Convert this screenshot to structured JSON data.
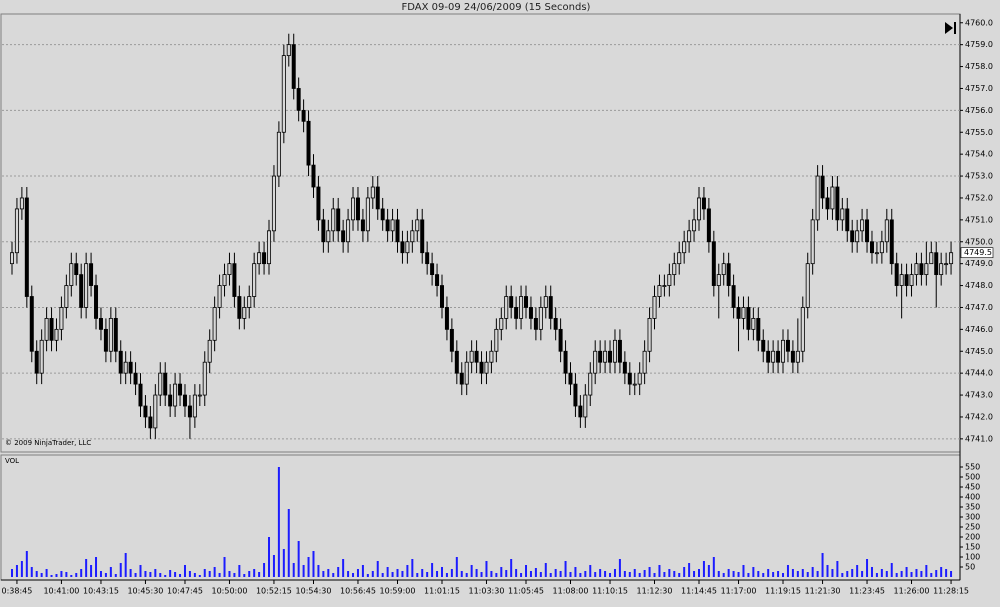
{
  "chart_data": {
    "type": "candlestick",
    "title": "FDAX 09-09  24/06/2009 (15 Seconds)",
    "copyright": "© 2009 NinjaTrader, LLC",
    "volume_label": "VOL",
    "categories": [
      null,
      "0:38:45",
      null,
      null,
      null,
      null,
      null,
      null,
      null,
      null,
      "10:41:00",
      null,
      null,
      null,
      null,
      null,
      null,
      null,
      "10:43:15",
      null,
      null,
      null,
      null,
      null,
      null,
      null,
      null,
      "10:45:30",
      null,
      null,
      null,
      null,
      null,
      null,
      null,
      "10:47:45",
      null,
      null,
      null,
      null,
      null,
      null,
      null,
      null,
      "10:50:00",
      null,
      null,
      null,
      null,
      null,
      null,
      null,
      null,
      "10:52:15",
      null,
      null,
      null,
      null,
      null,
      null,
      null,
      "10:54:30",
      null,
      null,
      null,
      null,
      null,
      null,
      null,
      null,
      "10:56:45",
      null,
      null,
      null,
      null,
      null,
      null,
      null,
      "10:59:00",
      null,
      null,
      null,
      null,
      null,
      null,
      null,
      null,
      "11:01:15",
      null,
      null,
      null,
      null,
      null,
      null,
      null,
      null,
      "11:03:30",
      null,
      null,
      null,
      null,
      null,
      null,
      null,
      "11:05:45",
      null,
      null,
      null,
      null,
      null,
      null,
      null,
      null,
      "11:08:00",
      null,
      null,
      null,
      null,
      null,
      null,
      null,
      "11:10:15",
      null,
      null,
      null,
      null,
      null,
      null,
      null,
      null,
      "11:12:30",
      null,
      null,
      null,
      null,
      null,
      null,
      null,
      null,
      "11:14:45",
      null,
      null,
      null,
      null,
      null,
      null,
      null,
      "11:17:00",
      null,
      null,
      null,
      null,
      null,
      null,
      null,
      null,
      "11:19:15",
      null,
      null,
      null,
      null,
      null,
      null,
      null,
      "11:21:30",
      null,
      null,
      null,
      null,
      null,
      null,
      null,
      null,
      "11:23:45",
      null,
      null,
      null,
      null,
      null,
      null,
      null,
      null,
      "11:26:00",
      null,
      null,
      null,
      null,
      null,
      null,
      null,
      "11:28:15"
    ],
    "open": [
      4749,
      4749.5,
      4751.5,
      4752,
      4747.5,
      4745,
      4744,
      4745.5,
      4746.5,
      4745.5,
      4746,
      4747,
      4748,
      4749,
      4748.5,
      4747,
      4749,
      4748,
      4746.5,
      4746,
      4745,
      4746.5,
      4745,
      4744,
      4744.5,
      4744,
      4743.5,
      4742.5,
      4742,
      4741.5,
      4743,
      4744,
      4743,
      4742.5,
      4743.5,
      4743,
      4742.5,
      4742,
      4743,
      4743,
      4744.5,
      4745.5,
      4747,
      4748,
      4748.5,
      4749,
      4747.5,
      4746.5,
      4747,
      4747.5,
      4749,
      4749.5,
      4749,
      4750.5,
      4753,
      4755,
      4758.5,
      4759,
      4757,
      4756,
      4755.5,
      4753.5,
      4752.5,
      4751,
      4750,
      4750.5,
      4751.5,
      4750.5,
      4750,
      4751,
      4752,
      4751,
      4750.5,
      4752,
      4752.5,
      4751.5,
      4751,
      4750.5,
      4751,
      4750,
      4749.5,
      4750,
      4750.5,
      4751,
      4749.5,
      4749,
      4748.5,
      4748,
      4747,
      4746,
      4745,
      4744,
      4743.5,
      4744.5,
      4745,
      4744.5,
      4744,
      4744.5,
      4745,
      4746,
      4746.5,
      4747.5,
      4747,
      4746.5,
      4747.5,
      4747,
      4746.5,
      4746,
      4747,
      4747.5,
      4746.5,
      4746,
      4745,
      4744,
      4743.5,
      4742.5,
      4742,
      4743,
      4744,
      4745,
      4744.5,
      4745,
      4744.5,
      4745.5,
      4744.5,
      4744,
      4743.5,
      4743.5,
      4744,
      4745,
      4746.5,
      4747.5,
      4748,
      4748,
      4748.5,
      4749,
      4749.5,
      4750,
      4750.5,
      4751,
      4752,
      4751.5,
      4750,
      4748,
      4748.5,
      4749,
      4748,
      4747,
      4746.5,
      4747,
      4746,
      4746.5,
      4745.5,
      4745,
      4744.5,
      4745,
      4744.5,
      4745.5,
      4745,
      4744.5,
      4745,
      4747,
      4749,
      4751,
      4753,
      4752,
      4751.5,
      4752.5,
      4751,
      4751.5,
      4750.5,
      4750,
      4750.5,
      4751,
      4750,
      4749.5,
      4749.5,
      4750,
      4751,
      4749,
      4748,
      4748.5,
      4748,
      4748.5,
      4749,
      4748.5,
      4749,
      4749.5,
      4748.5,
      4749,
      4749
    ],
    "high": [
      4750,
      4752,
      4752.5,
      4752.5,
      4748,
      4745.5,
      4746,
      4747,
      4747,
      4746.5,
      4747.5,
      4748.5,
      4749.5,
      4749.5,
      4749,
      4749.5,
      4749.5,
      4748.5,
      4747,
      4746.5,
      4747,
      4747,
      4745.5,
      4745,
      4745,
      4744.5,
      4744,
      4743,
      4742.5,
      4743.5,
      4744.5,
      4744.5,
      4743.5,
      4744,
      4744,
      4743.5,
      4743,
      4743.5,
      4743.5,
      4745,
      4746,
      4747.5,
      4748.5,
      4749,
      4749.5,
      4749.5,
      4748,
      4747.5,
      4748,
      4749.5,
      4750,
      4750,
      4751,
      4753.5,
      4755.5,
      4759,
      4759.5,
      4759.5,
      4757.5,
      4756.5,
      4756,
      4754,
      4753,
      4751.5,
      4751,
      4752,
      4752,
      4751,
      4751.5,
      4752.5,
      4752.5,
      4751.5,
      4752.5,
      4753,
      4753,
      4752,
      4751.5,
      4751.5,
      4751.5,
      4750.5,
      4750.5,
      4751,
      4751.5,
      4751.5,
      4750,
      4749.5,
      4749,
      4748.5,
      4747.5,
      4746.5,
      4745.5,
      4744.5,
      4745,
      4745.5,
      4745.5,
      4745,
      4745,
      4745.5,
      4746.5,
      4747,
      4748,
      4748,
      4747.5,
      4748,
      4748,
      4747.5,
      4747,
      4747.5,
      4748,
      4748,
      4747,
      4746.5,
      4745.5,
      4744.5,
      4744,
      4743,
      4743.5,
      4744.5,
      4745.5,
      4745.5,
      4745.5,
      4745.5,
      4746,
      4746,
      4745,
      4744.5,
      4744,
      4744.5,
      4745.5,
      4747,
      4748,
      4748.5,
      4748.5,
      4749,
      4749.5,
      4750,
      4750.5,
      4751,
      4751.5,
      4752.5,
      4752.5,
      4752,
      4750.5,
      4749,
      4749.5,
      4749.5,
      4748.5,
      4747.5,
      4747.5,
      4747.5,
      4747,
      4747,
      4746,
      4745.5,
      4745.5,
      4745.5,
      4746,
      4746,
      4745.5,
      4746.5,
      4747.5,
      4749.5,
      4751.5,
      4753.5,
      4753.5,
      4752.5,
      4753,
      4753,
      4752,
      4752,
      4751,
      4751,
      4751.5,
      4751.5,
      4750.5,
      4750,
      4750.5,
      4751.5,
      4751.5,
      4749.5,
      4749,
      4749,
      4749,
      4749.5,
      4749.5,
      4750,
      4750,
      4750,
      4749.5,
      4749.5,
      4750
    ],
    "low": [
      4748.5,
      4749,
      4751,
      4747,
      4744.5,
      4743.5,
      4743.5,
      4745,
      4745,
      4745,
      4745.5,
      4746.5,
      4747.5,
      4748,
      4746.5,
      4746.5,
      4747.5,
      4746,
      4745.5,
      4744.5,
      4744.5,
      4744.5,
      4743.5,
      4743.5,
      4743.5,
      4743,
      4742,
      4741.5,
      4741,
      4741,
      4742.5,
      4742.5,
      4742,
      4742,
      4742.5,
      4742,
      4741,
      4741.5,
      4742.5,
      4742.5,
      4744,
      4745,
      4746.5,
      4747.5,
      4748,
      4747,
      4746,
      4746,
      4746.5,
      4747,
      4748.5,
      4748.5,
      4748.5,
      4750,
      4752.5,
      4754.5,
      4758,
      4756.5,
      4755.5,
      4755,
      4753,
      4752,
      4750.5,
      4749.5,
      4749.5,
      4750,
      4750,
      4749.5,
      4749.5,
      4750.5,
      4750.5,
      4750,
      4750,
      4751.5,
      4751,
      4750.5,
      4750,
      4750,
      4749.5,
      4749,
      4749,
      4749.5,
      4750,
      4749,
      4748.5,
      4748,
      4747.5,
      4746.5,
      4745.5,
      4744.5,
      4743.5,
      4743,
      4743,
      4744,
      4744,
      4743.5,
      4743.5,
      4744,
      4744.5,
      4745.5,
      4746,
      4746.5,
      4746,
      4746,
      4746.5,
      4746,
      4745.5,
      4745.5,
      4746.5,
      4746,
      4745.5,
      4744.5,
      4743.5,
      4743,
      4742,
      4741.5,
      4741.5,
      4742.5,
      4743.5,
      4744,
      4744,
      4744,
      4744,
      4744,
      4743.5,
      4743,
      4743,
      4743,
      4743.5,
      4744.5,
      4746,
      4747,
      4747.5,
      4747.5,
      4748,
      4748.5,
      4749,
      4749.5,
      4750,
      4750.5,
      4751,
      4749.5,
      4747.5,
      4746.5,
      4748,
      4747.5,
      4746.5,
      4745,
      4746,
      4745.5,
      4745.5,
      4745,
      4744.5,
      4744,
      4744,
      4744,
      4744,
      4744.5,
      4744,
      4744,
      4744.5,
      4746.5,
      4748.5,
      4750.5,
      4751.5,
      4751,
      4751,
      4750.5,
      4750.5,
      4750,
      4749.5,
      4749.5,
      4750,
      4749.5,
      4749,
      4749,
      4749,
      4749.5,
      4748.5,
      4747.5,
      4746.5,
      4747.5,
      4747.5,
      4748,
      4748,
      4748,
      4749,
      4747,
      4748,
      4748.5,
      4748.5
    ],
    "close": [
      4749.5,
      4751.5,
      4752,
      4747.5,
      4745,
      4744,
      4745.5,
      4746.5,
      4745.5,
      4746,
      4747,
      4748,
      4749,
      4748.5,
      4747,
      4749,
      4748,
      4746.5,
      4746,
      4745,
      4746.5,
      4745,
      4744,
      4744.5,
      4744,
      4743.5,
      4742.5,
      4742,
      4741.5,
      4743,
      4744,
      4743,
      4742.5,
      4743.5,
      4743,
      4742.5,
      4742,
      4743,
      4743,
      4744.5,
      4745.5,
      4747,
      4748,
      4748.5,
      4749,
      4747.5,
      4746.5,
      4747,
      4747.5,
      4749,
      4749.5,
      4749,
      4750.5,
      4753,
      4755,
      4758.5,
      4759,
      4757,
      4756,
      4755.5,
      4753.5,
      4752.5,
      4751,
      4750,
      4750.5,
      4751.5,
      4750.5,
      4750,
      4751,
      4752,
      4751,
      4750.5,
      4752,
      4752.5,
      4751.5,
      4751,
      4750.5,
      4751,
      4750,
      4749.5,
      4750,
      4750.5,
      4751,
      4749.5,
      4749,
      4748.5,
      4748,
      4747,
      4746,
      4745,
      4744,
      4743.5,
      4744.5,
      4745,
      4744.5,
      4744,
      4744.5,
      4745,
      4746,
      4746.5,
      4747.5,
      4747,
      4746.5,
      4747.5,
      4747,
      4746.5,
      4746,
      4747,
      4747.5,
      4746.5,
      4746,
      4745,
      4744,
      4743.5,
      4742.5,
      4742,
      4743,
      4744,
      4745,
      4744.5,
      4745,
      4744.5,
      4745.5,
      4744.5,
      4744,
      4743.5,
      4743.5,
      4744,
      4745,
      4746.5,
      4747.5,
      4748,
      4748,
      4748.5,
      4749,
      4749.5,
      4750,
      4750.5,
      4751,
      4752,
      4751.5,
      4750,
      4748,
      4748.5,
      4749,
      4748,
      4747,
      4746.5,
      4747,
      4746,
      4746.5,
      4745.5,
      4745,
      4744.5,
      4745,
      4744.5,
      4745.5,
      4745,
      4744.5,
      4745,
      4747,
      4749,
      4751,
      4753,
      4752,
      4751.5,
      4752.5,
      4751,
      4751.5,
      4750.5,
      4750,
      4750.5,
      4751,
      4750,
      4749.5,
      4749.5,
      4750,
      4751,
      4749,
      4748,
      4748.5,
      4748,
      4748.5,
      4749,
      4748.5,
      4749,
      4749.5,
      4748.5,
      4749,
      4749,
      4749.5
    ],
    "volume": [
      40,
      60,
      80,
      130,
      50,
      30,
      20,
      40,
      10,
      15,
      30,
      25,
      10,
      20,
      40,
      90,
      60,
      100,
      30,
      20,
      50,
      15,
      70,
      120,
      40,
      20,
      60,
      30,
      25,
      40,
      20,
      10,
      35,
      25,
      15,
      60,
      30,
      20,
      10,
      40,
      30,
      50,
      20,
      100,
      30,
      20,
      60,
      15,
      30,
      40,
      25,
      70,
      200,
      110,
      550,
      140,
      340,
      70,
      180,
      60,
      100,
      130,
      60,
      30,
      40,
      20,
      50,
      90,
      30,
      20,
      40,
      60,
      15,
      30,
      80,
      20,
      50,
      25,
      40,
      30,
      60,
      90,
      20,
      40,
      25,
      70,
      30,
      50,
      20,
      40,
      100,
      30,
      20,
      60,
      40,
      25,
      80,
      30,
      20,
      50,
      35,
      90,
      40,
      20,
      60,
      30,
      45,
      25,
      70,
      20,
      40,
      30,
      80,
      25,
      50,
      20,
      30,
      60,
      25,
      40,
      30,
      20,
      40,
      90,
      30,
      25,
      40,
      20,
      35,
      50,
      20,
      60,
      25,
      40,
      30,
      20,
      50,
      70,
      30,
      40,
      80,
      60,
      100,
      30,
      20,
      40,
      30,
      25,
      60,
      20,
      50,
      30,
      20,
      40,
      25,
      30,
      20,
      60,
      40,
      30,
      40,
      25,
      50,
      30,
      120,
      60,
      40,
      80,
      20,
      30,
      40,
      60,
      30,
      90,
      50,
      20,
      40,
      30,
      70,
      20,
      30,
      50,
      25,
      40,
      30,
      60,
      20,
      35,
      50,
      40,
      30
    ],
    "ylim": [
      4740.4,
      4760.4
    ],
    "yticks": [
      {
        "value": 4741,
        "label": "4741.0"
      },
      {
        "value": 4742,
        "label": "4742.0"
      },
      {
        "value": 4743,
        "label": "4743.0"
      },
      {
        "value": 4744,
        "label": "4744.0"
      },
      {
        "value": 4745,
        "label": "4745.0"
      },
      {
        "value": 4746,
        "label": "4746.0"
      },
      {
        "value": 4747,
        "label": "4747.0"
      },
      {
        "value": 4748,
        "label": "4748.0"
      },
      {
        "value": 4749,
        "label": "4749.0"
      },
      {
        "value": 4750,
        "label": "4750.0"
      },
      {
        "value": 4751,
        "label": "4751.0"
      },
      {
        "value": 4752,
        "label": "4752.0"
      },
      {
        "value": 4753,
        "label": "4753.0"
      },
      {
        "value": 4754,
        "label": "4754.0"
      },
      {
        "value": 4755,
        "label": "4755.0"
      },
      {
        "value": 4756,
        "label": "4756.0"
      },
      {
        "value": 4757,
        "label": "4757.0"
      },
      {
        "value": 4758,
        "label": "4758.0"
      },
      {
        "value": 4759,
        "label": "4759.0"
      },
      {
        "value": 4760,
        "label": "4760.0"
      }
    ],
    "y2lim": [
      0,
      610
    ],
    "y2ticks": [
      50,
      100,
      150,
      200,
      250,
      300,
      350,
      400,
      450,
      500,
      550
    ],
    "up_color": "#d8d8d8",
    "down_color": "#000000",
    "volume_color": "#1c1cff",
    "grid": true
  }
}
